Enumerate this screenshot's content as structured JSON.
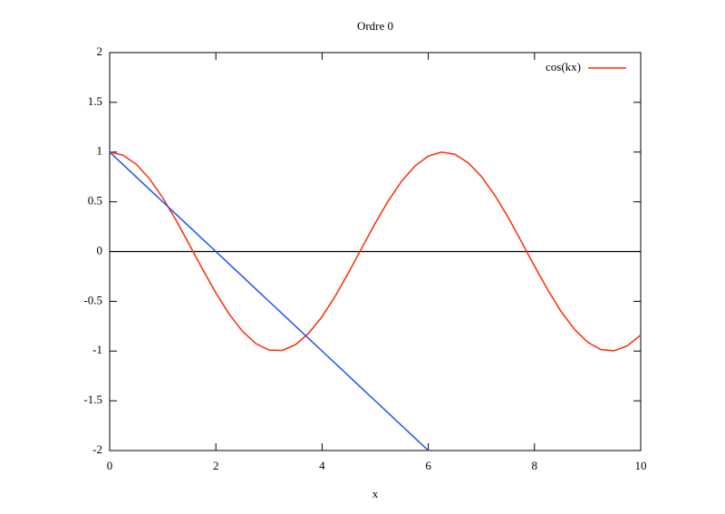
{
  "chart_data": {
    "type": "line",
    "title": "Ordre 0",
    "xlabel": "x",
    "x": [
      0,
      0.25,
      0.5,
      0.75,
      1,
      1.25,
      1.5,
      1.75,
      2,
      2.25,
      2.5,
      2.75,
      3,
      3.25,
      3.5,
      3.75,
      4,
      4.25,
      4.5,
      4.75,
      5,
      5.25,
      5.5,
      5.75,
      6,
      6.25,
      6.5,
      6.75,
      7,
      7.25,
      7.5,
      7.75,
      8,
      8.25,
      8.5,
      8.75,
      9,
      9.25,
      9.5,
      9.75,
      10
    ],
    "series": [
      {
        "name": "cos(kx)",
        "color": "#ff2a00",
        "values": [
          1,
          0.969,
          0.878,
          0.732,
          0.54,
          0.315,
          0.071,
          -0.178,
          -0.416,
          -0.628,
          -0.801,
          -0.924,
          -0.99,
          -0.994,
          -0.936,
          -0.82,
          -0.654,
          -0.446,
          -0.211,
          0.038,
          0.284,
          0.512,
          0.709,
          0.861,
          0.96,
          1,
          0.977,
          0.893,
          0.754,
          0.568,
          0.347,
          0.103,
          -0.146,
          -0.386,
          -0.602,
          -0.78,
          -0.911,
          -0.985,
          -0.997,
          -0.946,
          -0.839
        ]
      },
      {
        "color": "#1f4fff",
        "values": [
          1,
          0.875,
          0.75,
          0.625,
          0.5,
          0.375,
          0.25,
          0.125,
          0,
          -0.125,
          -0.25,
          -0.375,
          -0.5,
          -0.625,
          -0.75,
          -0.875,
          -1,
          -1.125,
          -1.25,
          -1.375,
          -1.5,
          -1.625,
          -1.75,
          -1.875,
          -2,
          null,
          null,
          null,
          null,
          null,
          null,
          null,
          null,
          null,
          null,
          null,
          null,
          null,
          null,
          null,
          null
        ]
      }
    ],
    "xlim": [
      0,
      10
    ],
    "xticks": [
      0,
      2,
      4,
      6,
      8,
      10
    ],
    "ylim": [
      -2,
      2
    ],
    "yticks": [
      -2,
      -1.5,
      -1,
      -0.5,
      0,
      0.5,
      1,
      1.5,
      2
    ],
    "zeroaxis": true,
    "legend": "top-right"
  }
}
